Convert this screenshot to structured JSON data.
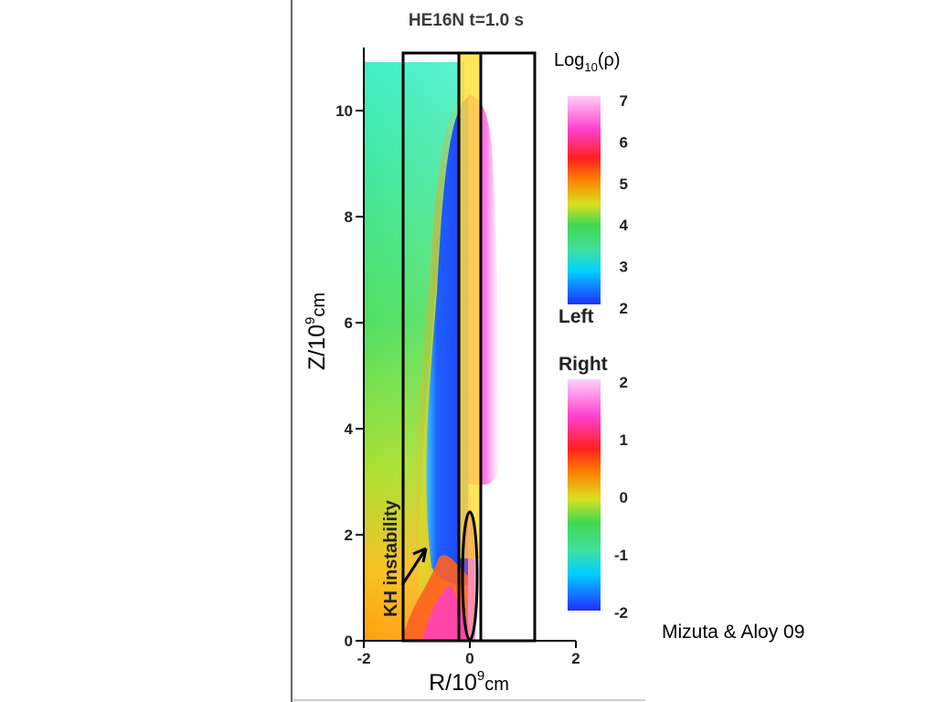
{
  "chart_data": {
    "type": "heatmap",
    "title": "HE16N t=1.0 s",
    "xlabel": {
      "base": "R/10",
      "exp": "9",
      "unit": "cm"
    },
    "ylabel": {
      "base": "Z/10",
      "exp": "9",
      "unit": "cm"
    },
    "xlim": [
      -2,
      2
    ],
    "ylim": [
      0,
      11
    ],
    "xticks": [
      "-2",
      "0",
      "2"
    ],
    "yticks": [
      "0",
      "2",
      "4",
      "6",
      "8",
      "10"
    ],
    "colorbars": [
      {
        "title_base": "Log",
        "title_sub": "10",
        "title_rest": "(ρ)",
        "ticks": [
          "7",
          "6",
          "5",
          "4",
          "3",
          "2"
        ],
        "range": [
          2,
          7
        ],
        "panel": "Left"
      },
      {
        "ticks": [
          "2",
          "1",
          "0",
          "-1",
          "-2"
        ],
        "range": [
          -2,
          2
        ],
        "panel": "Right"
      }
    ],
    "annotations": [
      "KH instability"
    ],
    "colors": {
      "colormap": [
        "#2040ff",
        "#00d0ff",
        "#30d860",
        "#c0e020",
        "#ffa000",
        "#ff2020",
        "#ff20c0",
        "#ffc8f8"
      ],
      "highlight": "#ffe040"
    }
  },
  "credit": "Mizuta & Aloy 09"
}
